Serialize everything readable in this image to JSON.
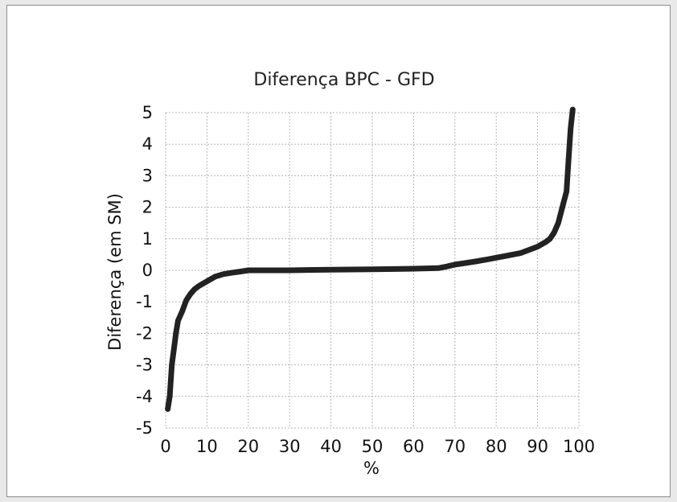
{
  "chart_data": {
    "type": "line",
    "title": "Diferença BPC - GFD",
    "xlabel": "%",
    "ylabel": "Diferença (em SM)",
    "xlim": [
      0,
      100
    ],
    "ylim": [
      -5,
      5
    ],
    "x_ticks": [
      "0",
      "10",
      "20",
      "30",
      "40",
      "50",
      "60",
      "70",
      "80",
      "90",
      "100"
    ],
    "y_ticks": [
      "5",
      "4",
      "3",
      "2",
      "1",
      "0",
      "-1",
      "-2",
      "-3",
      "-4",
      "-5"
    ],
    "grid": true,
    "legend": "none",
    "series": [
      {
        "x": [
          0.5,
          1,
          1.5,
          2,
          2.5,
          3,
          4,
          5,
          6,
          7,
          8,
          10,
          12,
          14,
          16,
          18,
          20,
          30,
          40,
          50,
          60,
          66,
          68,
          70,
          72,
          75,
          78,
          80,
          82,
          84,
          86,
          88,
          90,
          92,
          93,
          94,
          95,
          96,
          97,
          97.5,
          98,
          98.5
        ],
        "y": [
          -4.4,
          -4.0,
          -3.0,
          -2.5,
          -2.0,
          -1.6,
          -1.3,
          -0.95,
          -0.75,
          -0.6,
          -0.5,
          -0.35,
          -0.2,
          -0.12,
          -0.08,
          -0.04,
          0.0,
          0.0,
          0.02,
          0.03,
          0.05,
          0.07,
          0.12,
          0.18,
          0.22,
          0.28,
          0.35,
          0.4,
          0.45,
          0.5,
          0.55,
          0.65,
          0.75,
          0.9,
          1.0,
          1.2,
          1.5,
          2.0,
          2.5,
          3.5,
          4.5,
          5.1
        ]
      }
    ]
  },
  "colors": {
    "line": "#222222",
    "grid": "#b5b5b5",
    "background": "#ffffff"
  }
}
